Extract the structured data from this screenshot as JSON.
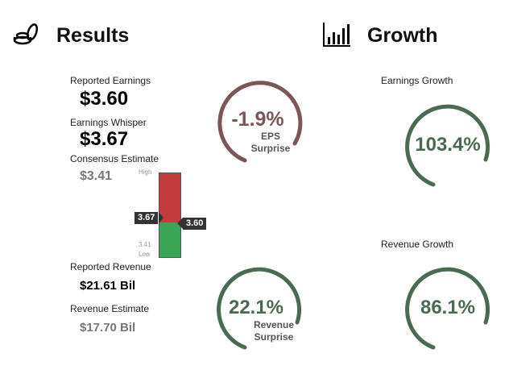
{
  "results": {
    "title": "Results",
    "icon": "coins-icon",
    "reported_earnings_label": "Reported Earnings",
    "reported_earnings_value": "$3.60",
    "earnings_whisper_label": "Earnings Whisper",
    "earnings_whisper_value": "$3.67",
    "consensus_label": "Consensus Estimate",
    "consensus_value": "$3.41",
    "reported_revenue_label": "Reported Revenue",
    "reported_revenue_value": "$21.61 Bil",
    "revenue_estimate_label": "Revenue Estimate",
    "revenue_estimate_value": "$17.70 Bil",
    "range_chart": {
      "high_label": "High",
      "low_label": "Low",
      "low_value": "3.41",
      "whisper_tag": "3.67",
      "reported_tag": "3.60",
      "colors": {
        "upper": "#c33b3b",
        "lower": "#3aa655"
      }
    },
    "eps_surprise": {
      "value": "-1.9%",
      "line1": "EPS",
      "line2": "Surprise",
      "color": "#7b5656",
      "fraction": 0.75
    },
    "revenue_surprise": {
      "value": "22.1%",
      "line1": "Revenue",
      "line2": "Surprise",
      "color": "#4a6b51",
      "fraction": 0.8
    }
  },
  "growth": {
    "title": "Growth",
    "icon": "bar-chart-icon",
    "earnings_growth_label": "Earnings Growth",
    "earnings_growth": {
      "value": "103.4%",
      "color": "#4a6b51",
      "fraction": 0.8
    },
    "revenue_growth_label": "Revenue Growth",
    "revenue_growth": {
      "value": "86.1%",
      "color": "#4a6b51",
      "fraction": 0.8
    }
  }
}
